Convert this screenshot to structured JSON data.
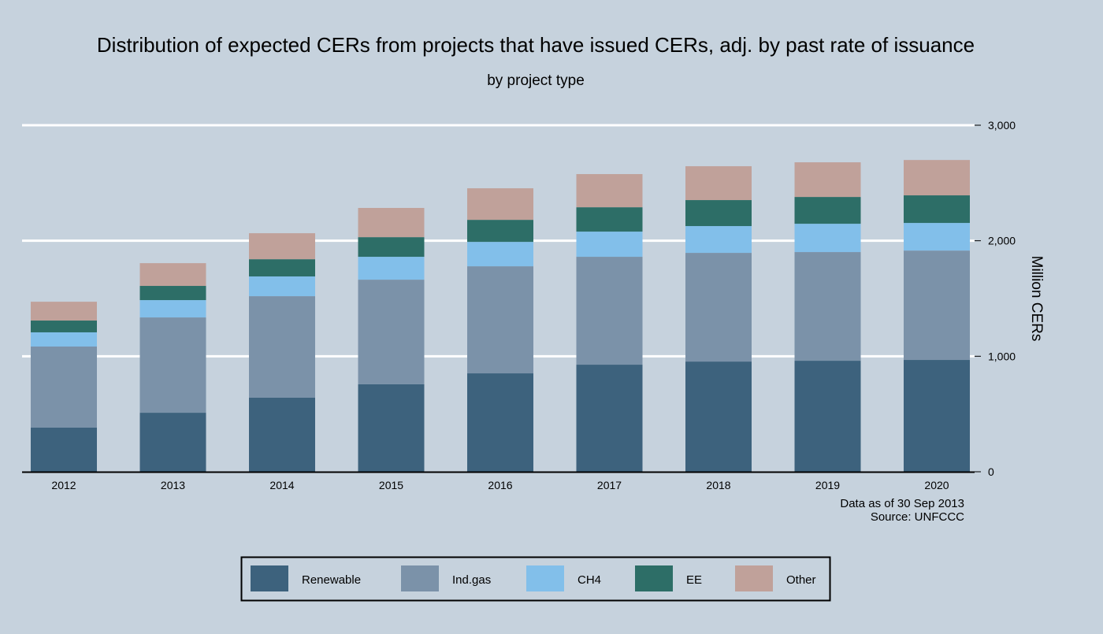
{
  "chart_data": {
    "type": "bar",
    "stacked": true,
    "title": "Distribution of expected CERs from projects that have issued CERs, adj. by past rate of issuance",
    "subtitle": "by project type",
    "xlabel": "",
    "ylabel": "Million CERs",
    "ylim": [
      0,
      3000
    ],
    "yticks": [
      0,
      1000,
      2000,
      3000
    ],
    "ytick_labels": [
      "0",
      "1,000",
      "2,000",
      "3,000"
    ],
    "grid": true,
    "legend_position": "bottom",
    "categories": [
      "2012",
      "2013",
      "2014",
      "2015",
      "2016",
      "2017",
      "2018",
      "2019",
      "2020"
    ],
    "series": [
      {
        "name": "Renewable",
        "color": "#3d627d",
        "values": [
          382,
          511,
          641,
          757,
          852,
          927,
          954,
          961,
          968
        ]
      },
      {
        "name": "Ind.gas",
        "color": "#7b92a9",
        "values": [
          702,
          825,
          879,
          906,
          927,
          934,
          941,
          941,
          947
        ]
      },
      {
        "name": "CH4",
        "color": "#82bfea",
        "values": [
          123,
          150,
          171,
          198,
          211,
          218,
          232,
          245,
          239
        ]
      },
      {
        "name": "EE",
        "color": "#2d6e67",
        "values": [
          102,
          123,
          149,
          170,
          191,
          211,
          225,
          232,
          239
        ]
      },
      {
        "name": "Other",
        "color": "#c0a19a",
        "values": [
          163,
          197,
          225,
          253,
          273,
          287,
          293,
          300,
          306
        ]
      }
    ],
    "annotations": [
      "Data as of 30 Sep 2013",
      "Source: UNFCCC"
    ]
  }
}
